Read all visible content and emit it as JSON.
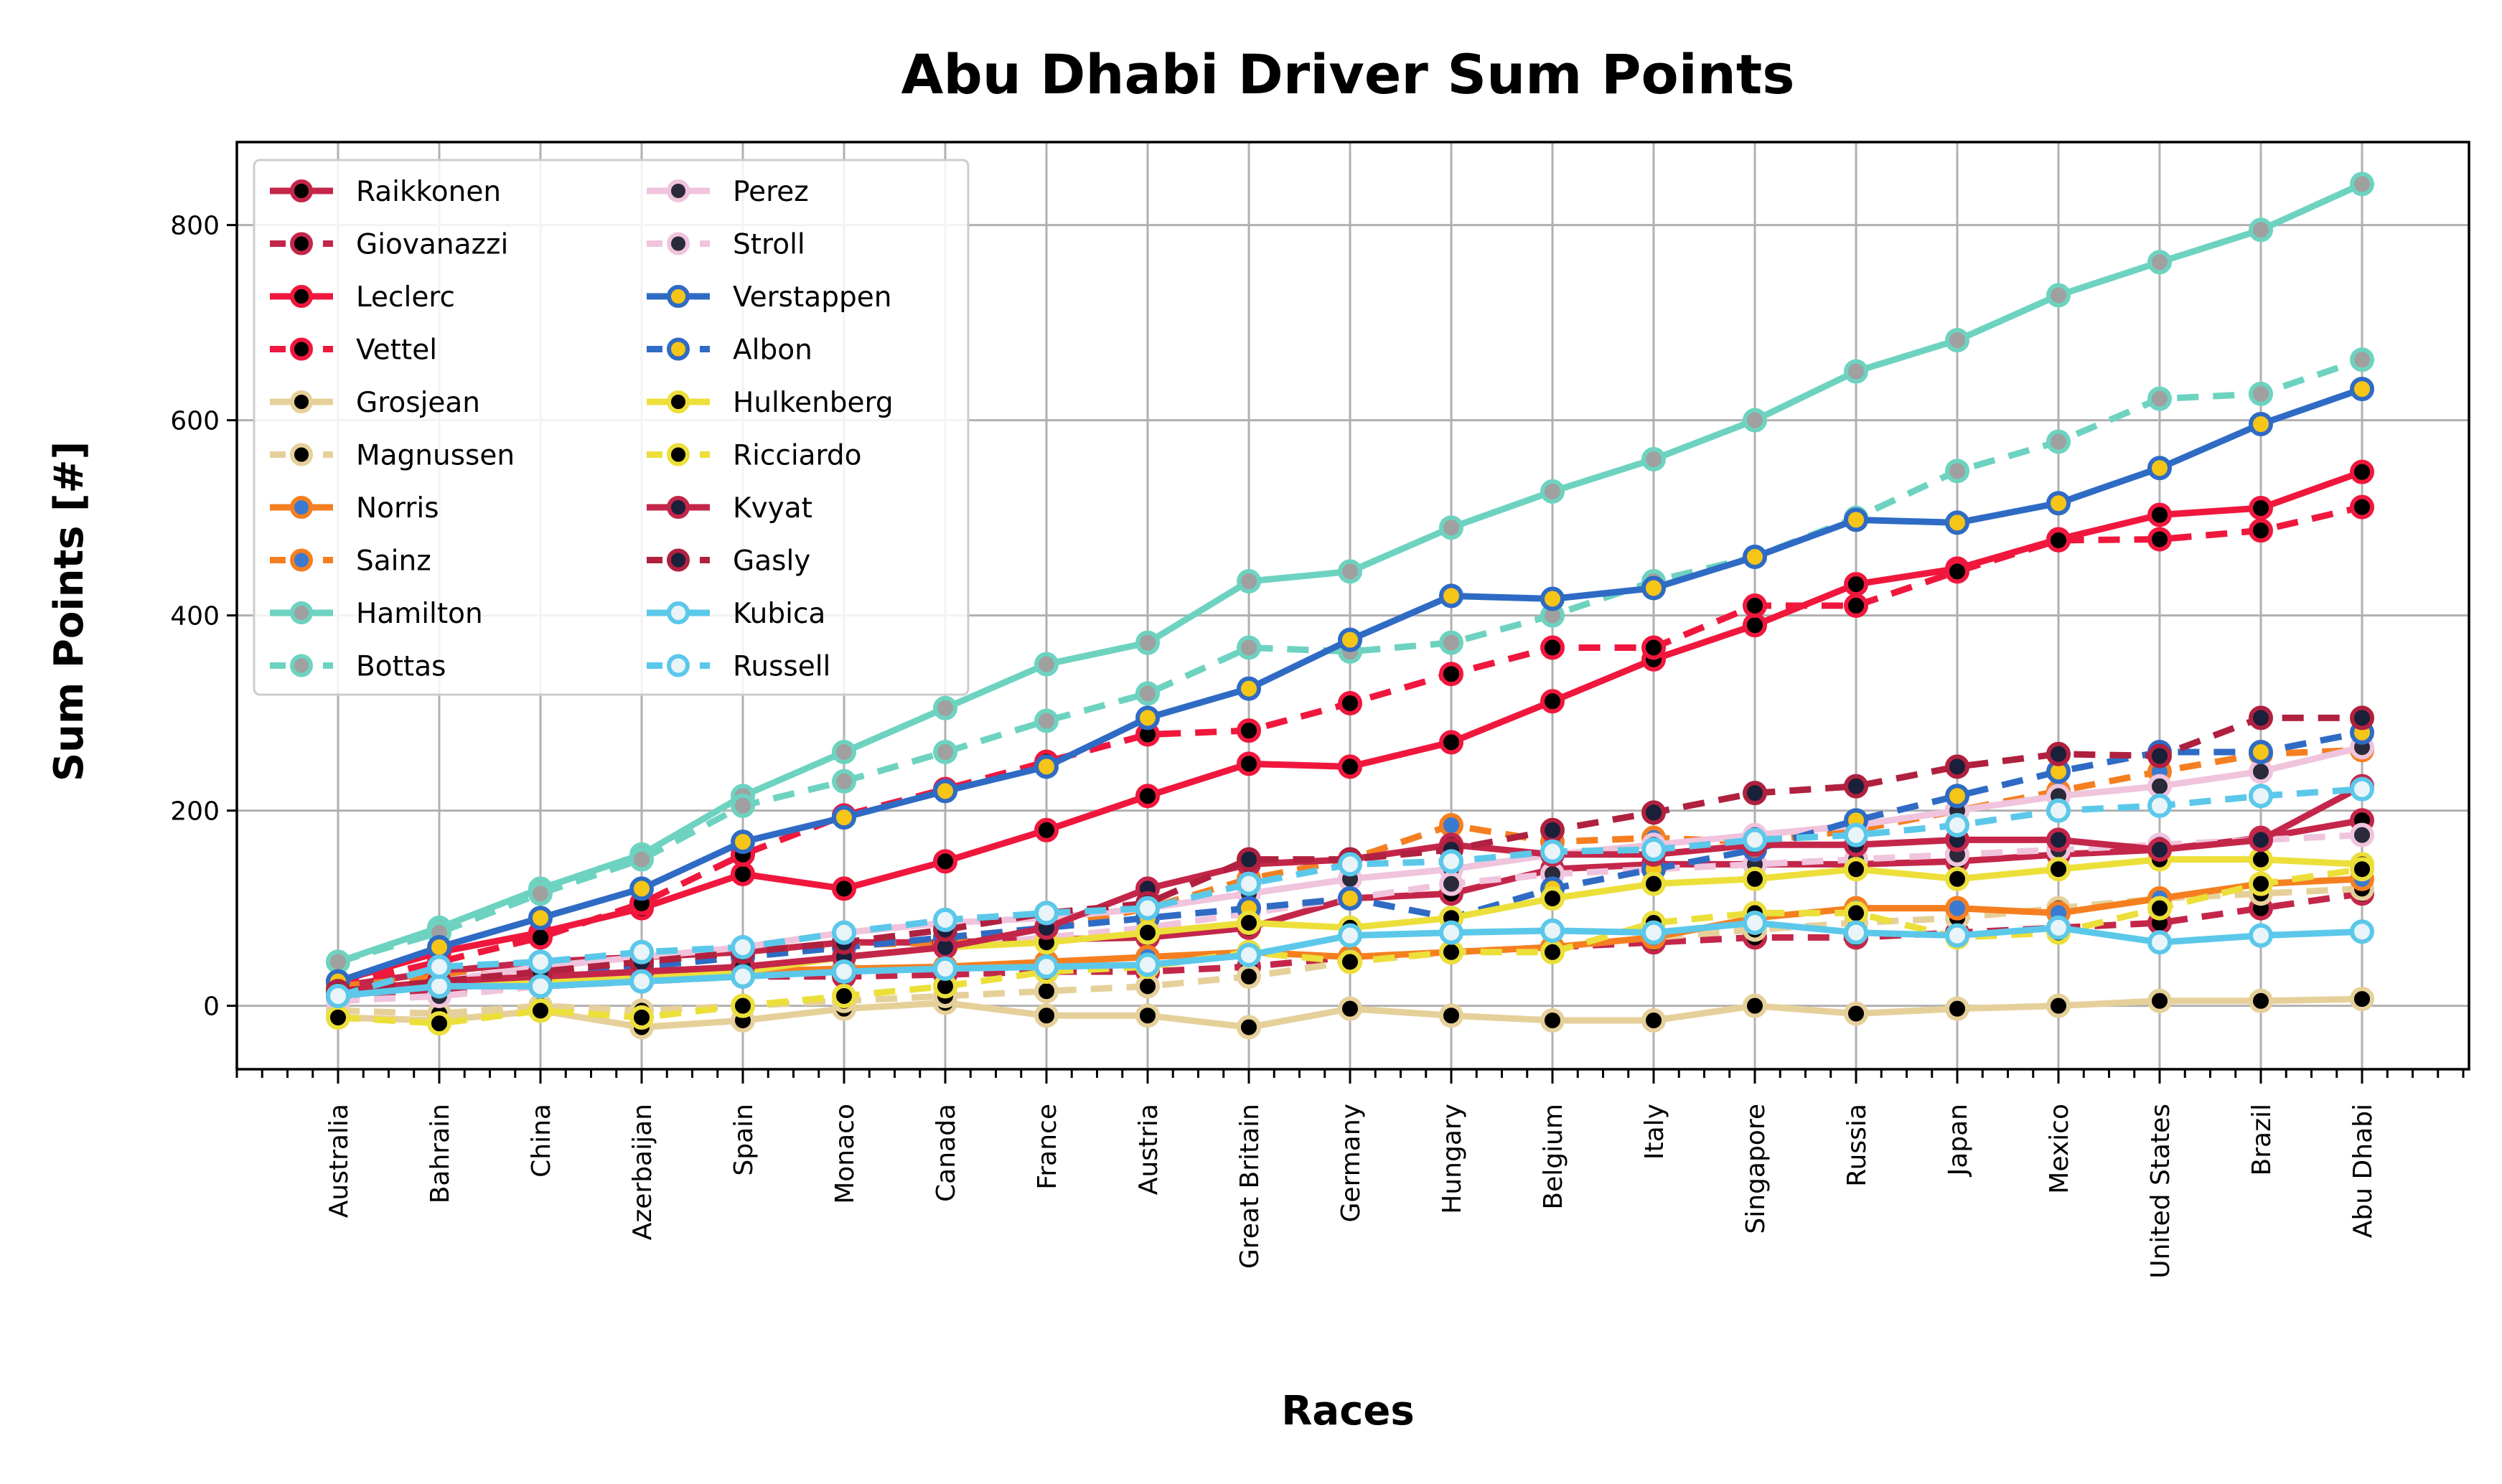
{
  "chart_data": {
    "type": "line",
    "title": "Abu Dhabi Driver Sum Points",
    "xlabel": "Races",
    "ylabel": "Sum Points [#]",
    "ylim": [
      -65,
      885
    ],
    "yticks": [
      0,
      200,
      400,
      600,
      800
    ],
    "grid": true,
    "legend_position": "top-left",
    "legend_columns": 2,
    "categories": [
      "Australia",
      "Bahrain",
      "China",
      "Azerbaijan",
      "Spain",
      "Monaco",
      "Canada",
      "France",
      "Austria",
      "Great Britain",
      "Germany",
      "Hungary",
      "Belgium",
      "Italy",
      "Singapore",
      "Russia",
      "Japan",
      "Mexico",
      "United States",
      "Brazil",
      "Abu Dhabi"
    ],
    "series": [
      {
        "name": "Raikkonen",
        "color": "#c4264a",
        "dash": "solid",
        "marker_fill": "#000000",
        "values": [
          20,
          35,
          45,
          50,
          55,
          65,
          65,
          68,
          70,
          80,
          110,
          115,
          140,
          145,
          145,
          145,
          148,
          155,
          160,
          172,
          190
        ]
      },
      {
        "name": "Giovanazzi",
        "color": "#c4264a",
        "dash": "dashed",
        "marker_fill": "#000000",
        "values": [
          10,
          15,
          20,
          25,
          30,
          30,
          32,
          35,
          35,
          40,
          50,
          55,
          60,
          65,
          70,
          70,
          75,
          80,
          85,
          100,
          115
        ]
      },
      {
        "name": "Leclerc",
        "color": "#f0173d",
        "dash": "solid",
        "marker_fill": "#000000",
        "values": [
          25,
          55,
          75,
          100,
          135,
          120,
          148,
          180,
          215,
          248,
          245,
          270,
          312,
          355,
          390,
          432,
          448,
          478,
          503,
          510,
          547
        ]
      },
      {
        "name": "Vettel",
        "color": "#f0173d",
        "dash": "dashed",
        "marker_fill": "#000000",
        "values": [
          22,
          45,
          70,
          105,
          155,
          195,
          222,
          250,
          278,
          282,
          310,
          340,
          367,
          367,
          410,
          410,
          445,
          477,
          478,
          487,
          511
        ]
      },
      {
        "name": "Grosjean",
        "color": "#e6d09a",
        "dash": "solid",
        "marker_fill": "#000000",
        "values": [
          -12,
          -15,
          -5,
          -22,
          -15,
          -3,
          3,
          -10,
          -10,
          -22,
          -3,
          -10,
          -15,
          -15,
          0,
          -8,
          -3,
          0,
          5,
          5,
          7
        ]
      },
      {
        "name": "Magnussen",
        "color": "#e6d09a",
        "dash": "dashed",
        "marker_fill": "#000000",
        "values": [
          -5,
          -8,
          0,
          -5,
          0,
          5,
          10,
          15,
          20,
          30,
          45,
          55,
          60,
          70,
          78,
          85,
          90,
          100,
          110,
          115,
          120
        ]
      },
      {
        "name": "Norris",
        "color": "#f57f20",
        "dash": "solid",
        "marker_fill": "#3a7ad0",
        "values": [
          15,
          25,
          30,
          35,
          35,
          38,
          40,
          45,
          50,
          55,
          50,
          55,
          60,
          70,
          90,
          100,
          100,
          95,
          110,
          125,
          130
        ]
      },
      {
        "name": "Sainz",
        "color": "#f57f20",
        "dash": "dashed",
        "marker_fill": "#3a7ad0",
        "values": [
          20,
          30,
          35,
          45,
          55,
          62,
          65,
          80,
          100,
          130,
          150,
          185,
          168,
          172,
          168,
          180,
          200,
          220,
          240,
          258,
          262
        ]
      },
      {
        "name": "Hamilton",
        "color": "#6dd3c0",
        "dash": "solid",
        "marker_fill": "#a0a0a0",
        "values": [
          45,
          80,
          120,
          155,
          215,
          260,
          305,
          350,
          372,
          435,
          445,
          490,
          527,
          560,
          600,
          650,
          682,
          728,
          762,
          795,
          842
        ]
      },
      {
        "name": "Bottas",
        "color": "#6dd3c0",
        "dash": "dashed",
        "marker_fill": "#a0a0a0",
        "values": [
          45,
          75,
          115,
          150,
          205,
          230,
          260,
          292,
          320,
          367,
          363,
          372,
          400,
          435,
          460,
          500,
          548,
          578,
          622,
          627,
          662
        ]
      },
      {
        "name": "Perez",
        "color": "#f0c4dd",
        "dash": "solid",
        "marker_fill": "#2a2a3a",
        "values": [
          10,
          25,
          40,
          50,
          60,
          75,
          85,
          90,
          100,
          115,
          130,
          140,
          155,
          165,
          175,
          185,
          200,
          215,
          225,
          240,
          265
        ]
      },
      {
        "name": "Stroll",
        "color": "#f0c4dd",
        "dash": "dashed",
        "marker_fill": "#2a2a3a",
        "values": [
          5,
          10,
          20,
          30,
          35,
          50,
          60,
          70,
          80,
          95,
          110,
          125,
          135,
          140,
          145,
          150,
          155,
          160,
          165,
          170,
          175
        ]
      },
      {
        "name": "Verstappen",
        "color": "#2f6bc4",
        "dash": "solid",
        "marker_fill": "#f5c518",
        "values": [
          25,
          60,
          90,
          120,
          168,
          193,
          220,
          245,
          295,
          325,
          375,
          420,
          417,
          428,
          460,
          498,
          495,
          515,
          551,
          596,
          632
        ]
      },
      {
        "name": "Albon",
        "color": "#2f6bc4",
        "dash": "dashed",
        "marker_fill": "#f5c518",
        "values": [
          10,
          20,
          30,
          40,
          50,
          60,
          70,
          80,
          90,
          100,
          110,
          90,
          120,
          140,
          160,
          190,
          215,
          240,
          260,
          260,
          280
        ]
      },
      {
        "name": "Hulkenberg",
        "color": "#ecdf3a",
        "dash": "solid",
        "marker_fill": "#000000",
        "values": [
          15,
          20,
          25,
          30,
          35,
          50,
          60,
          65,
          75,
          85,
          80,
          90,
          110,
          125,
          130,
          140,
          130,
          140,
          150,
          150,
          145
        ]
      },
      {
        "name": "Ricciardo",
        "color": "#ecdf3a",
        "dash": "dashed",
        "marker_fill": "#000000",
        "values": [
          -12,
          -18,
          -5,
          -12,
          0,
          10,
          20,
          35,
          40,
          55,
          45,
          55,
          55,
          85,
          95,
          95,
          70,
          75,
          100,
          125,
          140
        ]
      },
      {
        "name": "Kvyat",
        "color": "#c4264a",
        "dash": "solid",
        "marker_fill": "#1a1f3a",
        "values": [
          15,
          25,
          30,
          35,
          40,
          50,
          60,
          80,
          120,
          145,
          150,
          165,
          155,
          155,
          165,
          165,
          170,
          170,
          160,
          170,
          225
        ]
      },
      {
        "name": "Gasly",
        "color": "#b0203f",
        "dash": "dashed",
        "marker_fill": "#1a1f3a",
        "values": [
          15,
          25,
          35,
          45,
          55,
          65,
          78,
          95,
          105,
          150,
          150,
          160,
          180,
          198,
          218,
          225,
          245,
          258,
          256,
          295,
          295
        ]
      },
      {
        "name": "Kubica",
        "color": "#5bc8ea",
        "dash": "solid",
        "marker_fill": "#e8f4f8",
        "values": [
          10,
          20,
          20,
          25,
          30,
          35,
          38,
          40,
          42,
          52,
          72,
          75,
          77,
          75,
          85,
          75,
          72,
          80,
          65,
          72,
          76
        ]
      },
      {
        "name": "Russell",
        "color": "#5bc8ea",
        "dash": "dashed",
        "marker_fill": "#e8f4f8",
        "values": [
          10,
          40,
          45,
          55,
          60,
          75,
          88,
          95,
          100,
          125,
          145,
          148,
          158,
          160,
          170,
          175,
          185,
          200,
          205,
          215,
          222
        ]
      }
    ]
  }
}
